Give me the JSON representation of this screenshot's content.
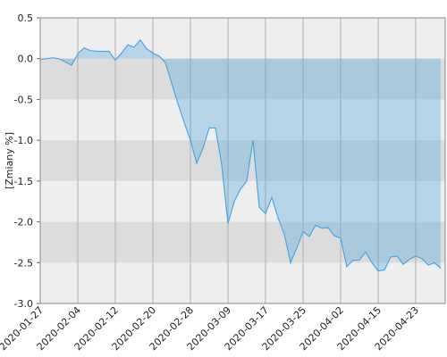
{
  "chart_data": {
    "type": "area",
    "y_label": "[Zmiany %]",
    "categories": [
      "2020-01-27",
      null,
      null,
      null,
      null,
      null,
      "2020-02-04",
      null,
      null,
      null,
      null,
      null,
      "2020-02-12",
      null,
      null,
      null,
      null,
      null,
      "2020-02-20",
      null,
      null,
      null,
      null,
      null,
      "2020-02-28",
      null,
      null,
      null,
      null,
      null,
      "2020-03-09",
      null,
      null,
      null,
      null,
      null,
      "2020-03-17",
      null,
      null,
      null,
      null,
      null,
      "2020-03-25",
      null,
      null,
      null,
      null,
      null,
      "2020-04-02",
      null,
      null,
      null,
      null,
      null,
      "2020-04-15",
      null,
      null,
      null,
      null,
      null,
      "2020-04-23",
      null,
      null,
      null,
      null
    ],
    "series": [
      {
        "color": "#4da6e0",
        "values": [
          -0.01,
          0.0,
          0.01,
          0.0,
          -0.04,
          -0.08,
          0.06,
          0.13,
          0.1,
          0.09,
          0.09,
          0.09,
          -0.02,
          0.07,
          0.17,
          0.14,
          0.23,
          0.12,
          0.07,
          0.03,
          -0.05,
          -0.3,
          -0.55,
          -0.78,
          -1.0,
          -1.28,
          -1.1,
          -0.85,
          -0.85,
          -1.3,
          -2.02,
          -1.75,
          -1.6,
          -1.5,
          -1.0,
          -1.82,
          -1.9,
          -1.7,
          -1.95,
          -2.15,
          -2.5,
          -2.32,
          -2.12,
          -2.18,
          -2.04,
          -2.08,
          -2.07,
          -2.17,
          -2.2,
          -2.55,
          -2.47,
          -2.47,
          -2.37,
          -2.5,
          -2.6,
          -2.59,
          -2.43,
          -2.42,
          -2.52,
          -2.46,
          -2.42,
          -2.45,
          -2.53,
          -2.5,
          -2.57
        ]
      }
    ],
    "ylim": [
      -3.0,
      0.5
    ],
    "yticks": [
      0.5,
      {
        "value": 0,
        "label": "0.0"
      },
      -0.5,
      {
        "value": -1,
        "label": "-1.0"
      },
      -1.5,
      {
        "value": -2,
        "label": "-2.0"
      },
      -2.5,
      {
        "value": -3,
        "label": "-3.0"
      }
    ],
    "grid": true
  }
}
